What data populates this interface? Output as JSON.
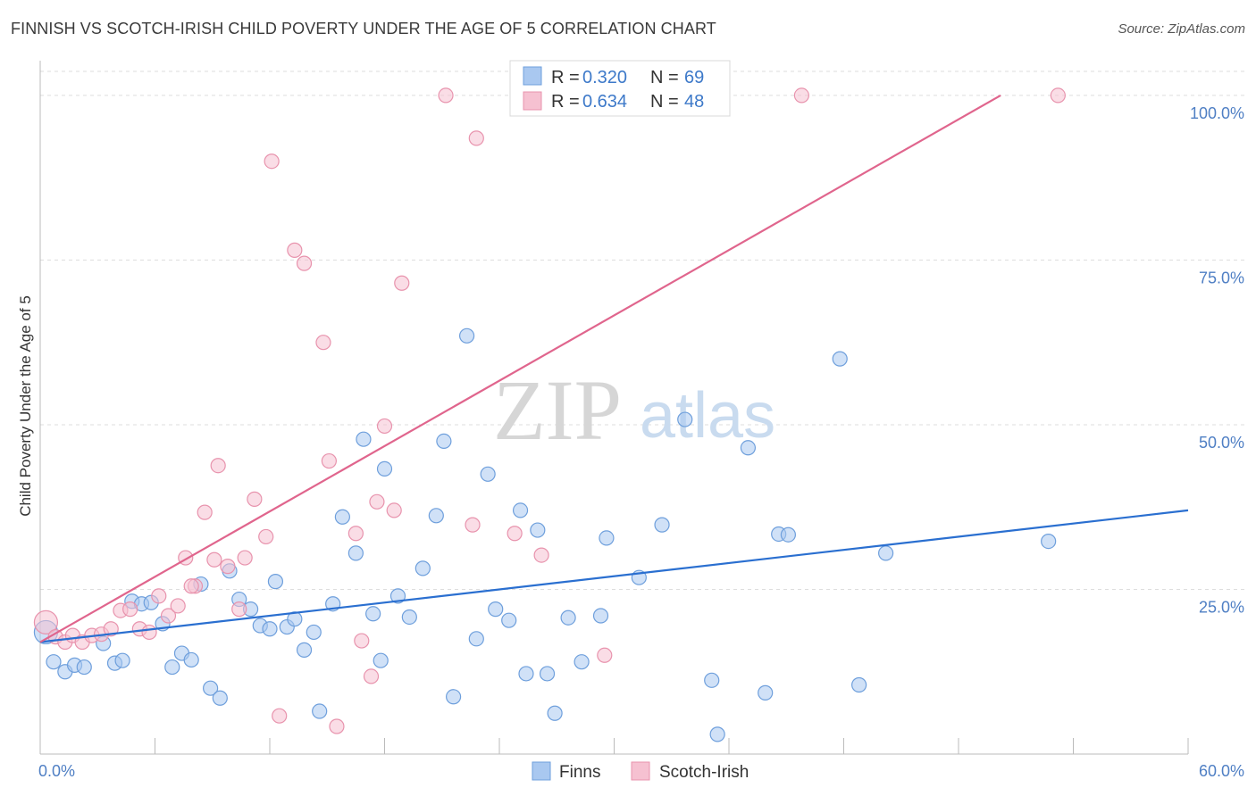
{
  "title": "FINNISH VS SCOTCH-IRISH CHILD POVERTY UNDER THE AGE OF 5 CORRELATION CHART",
  "source": "Source: ZipAtlas.com",
  "watermark": {
    "zip": "ZIP",
    "atlas": "atlas"
  },
  "legend": {
    "rows": [
      {
        "r_label": "R = ",
        "r_value": "0.320",
        "n_label": "N = ",
        "n_value": "69"
      },
      {
        "r_label": "R = ",
        "r_value": "0.634",
        "n_label": "N = ",
        "n_value": "48"
      }
    ]
  },
  "bottom_legend": [
    "Finns",
    "Scotch-Irish"
  ],
  "colors": {
    "finns_fill": "#a9c8f0",
    "finns_stroke": "#6e9fdc",
    "finns_line": "#2a6fd0",
    "scotch_fill": "#f6c1d1",
    "scotch_stroke": "#e893ad",
    "scotch_line": "#e0658d",
    "grid": "#dddddd",
    "tick_label": "#4f7fc4"
  },
  "chart_data": {
    "type": "scatter",
    "xlabel": "",
    "ylabel": "Child Poverty Under the Age of 5",
    "xlim": [
      0,
      60
    ],
    "ylim": [
      0,
      105
    ],
    "x_tick_labels": [
      "0.0%",
      "60.0%"
    ],
    "y_ticks": [
      25,
      50,
      75,
      100
    ],
    "y_tick_labels": [
      "25.0%",
      "50.0%",
      "75.0%",
      "100.0%"
    ],
    "grid": true,
    "legend_position": "top-center",
    "series": [
      {
        "name": "Finns",
        "R": 0.32,
        "N": 69,
        "trend": {
          "x": [
            0,
            60
          ],
          "y": [
            17.0,
            37.0
          ]
        },
        "points": [
          [
            0.3,
            18.5
          ],
          [
            0.7,
            14.0
          ],
          [
            1.3,
            12.5
          ],
          [
            1.8,
            13.5
          ],
          [
            2.3,
            13.2
          ],
          [
            3.3,
            16.8
          ],
          [
            3.9,
            13.8
          ],
          [
            4.3,
            14.2
          ],
          [
            4.8,
            23.2
          ],
          [
            5.3,
            22.8
          ],
          [
            5.8,
            23.0
          ],
          [
            6.4,
            19.8
          ],
          [
            6.9,
            13.2
          ],
          [
            7.4,
            15.3
          ],
          [
            7.9,
            14.3
          ],
          [
            8.4,
            25.8
          ],
          [
            8.9,
            10.0
          ],
          [
            9.4,
            8.5
          ],
          [
            9.9,
            27.8
          ],
          [
            10.4,
            23.5
          ],
          [
            11.0,
            22.0
          ],
          [
            11.5,
            19.5
          ],
          [
            12.0,
            19.0
          ],
          [
            12.3,
            26.2
          ],
          [
            12.9,
            19.3
          ],
          [
            13.3,
            20.5
          ],
          [
            13.8,
            15.8
          ],
          [
            14.3,
            18.5
          ],
          [
            14.6,
            6.5
          ],
          [
            15.3,
            22.8
          ],
          [
            15.8,
            36.0
          ],
          [
            16.5,
            30.5
          ],
          [
            16.9,
            47.8
          ],
          [
            17.4,
            21.3
          ],
          [
            17.8,
            14.2
          ],
          [
            18.0,
            43.3
          ],
          [
            18.7,
            24.0
          ],
          [
            19.3,
            20.8
          ],
          [
            20.0,
            28.2
          ],
          [
            20.7,
            36.2
          ],
          [
            21.1,
            47.5
          ],
          [
            21.6,
            8.7
          ],
          [
            22.3,
            63.5
          ],
          [
            22.8,
            17.5
          ],
          [
            23.4,
            42.5
          ],
          [
            23.8,
            22.0
          ],
          [
            24.5,
            20.3
          ],
          [
            25.1,
            37.0
          ],
          [
            25.4,
            12.2
          ],
          [
            26.0,
            34.0
          ],
          [
            26.5,
            12.2
          ],
          [
            26.9,
            6.2
          ],
          [
            27.6,
            20.7
          ],
          [
            28.3,
            14.0
          ],
          [
            29.3,
            21.0
          ],
          [
            29.6,
            32.8
          ],
          [
            31.3,
            26.8
          ],
          [
            32.5,
            34.8
          ],
          [
            33.7,
            50.8
          ],
          [
            35.1,
            11.2
          ],
          [
            35.4,
            3.0
          ],
          [
            37.0,
            46.5
          ],
          [
            37.9,
            9.3
          ],
          [
            38.6,
            33.4
          ],
          [
            39.1,
            33.3
          ],
          [
            41.8,
            60.0
          ],
          [
            42.8,
            10.5
          ],
          [
            44.2,
            30.5
          ],
          [
            52.7,
            32.3
          ]
        ]
      },
      {
        "name": "Scotch-Irish",
        "R": 0.634,
        "N": 48,
        "trend": {
          "x": [
            0,
            50.2
          ],
          "y": [
            17.0,
            100.0
          ]
        },
        "points": [
          [
            0.3,
            20.0
          ],
          [
            0.8,
            17.8
          ],
          [
            1.3,
            17.0
          ],
          [
            1.7,
            18.0
          ],
          [
            2.2,
            17.0
          ],
          [
            2.7,
            18.0
          ],
          [
            3.2,
            18.2
          ],
          [
            3.7,
            19.0
          ],
          [
            4.2,
            21.8
          ],
          [
            4.7,
            22.0
          ],
          [
            5.2,
            19.0
          ],
          [
            5.7,
            18.5
          ],
          [
            6.2,
            24.0
          ],
          [
            6.7,
            21.0
          ],
          [
            7.2,
            22.5
          ],
          [
            7.6,
            29.8
          ],
          [
            8.1,
            25.5
          ],
          [
            8.6,
            36.7
          ],
          [
            9.1,
            29.5
          ],
          [
            9.3,
            43.8
          ],
          [
            9.8,
            28.5
          ],
          [
            10.4,
            22.0
          ],
          [
            10.7,
            29.8
          ],
          [
            11.2,
            38.7
          ],
          [
            11.8,
            33.0
          ],
          [
            12.1,
            90.0
          ],
          [
            12.5,
            5.8
          ],
          [
            13.3,
            76.5
          ],
          [
            13.8,
            74.5
          ],
          [
            14.8,
            62.5
          ],
          [
            15.1,
            44.5
          ],
          [
            15.5,
            4.2
          ],
          [
            16.5,
            33.5
          ],
          [
            16.8,
            17.2
          ],
          [
            17.3,
            11.8
          ],
          [
            17.6,
            38.3
          ],
          [
            18.0,
            49.8
          ],
          [
            18.5,
            37.0
          ],
          [
            18.9,
            71.5
          ],
          [
            21.2,
            100.0
          ],
          [
            22.6,
            34.8
          ],
          [
            22.8,
            93.5
          ],
          [
            24.8,
            33.5
          ],
          [
            26.2,
            30.2
          ],
          [
            29.5,
            15.0
          ],
          [
            39.8,
            100.0
          ],
          [
            53.2,
            100.0
          ],
          [
            7.9,
            25.5
          ]
        ]
      }
    ]
  }
}
